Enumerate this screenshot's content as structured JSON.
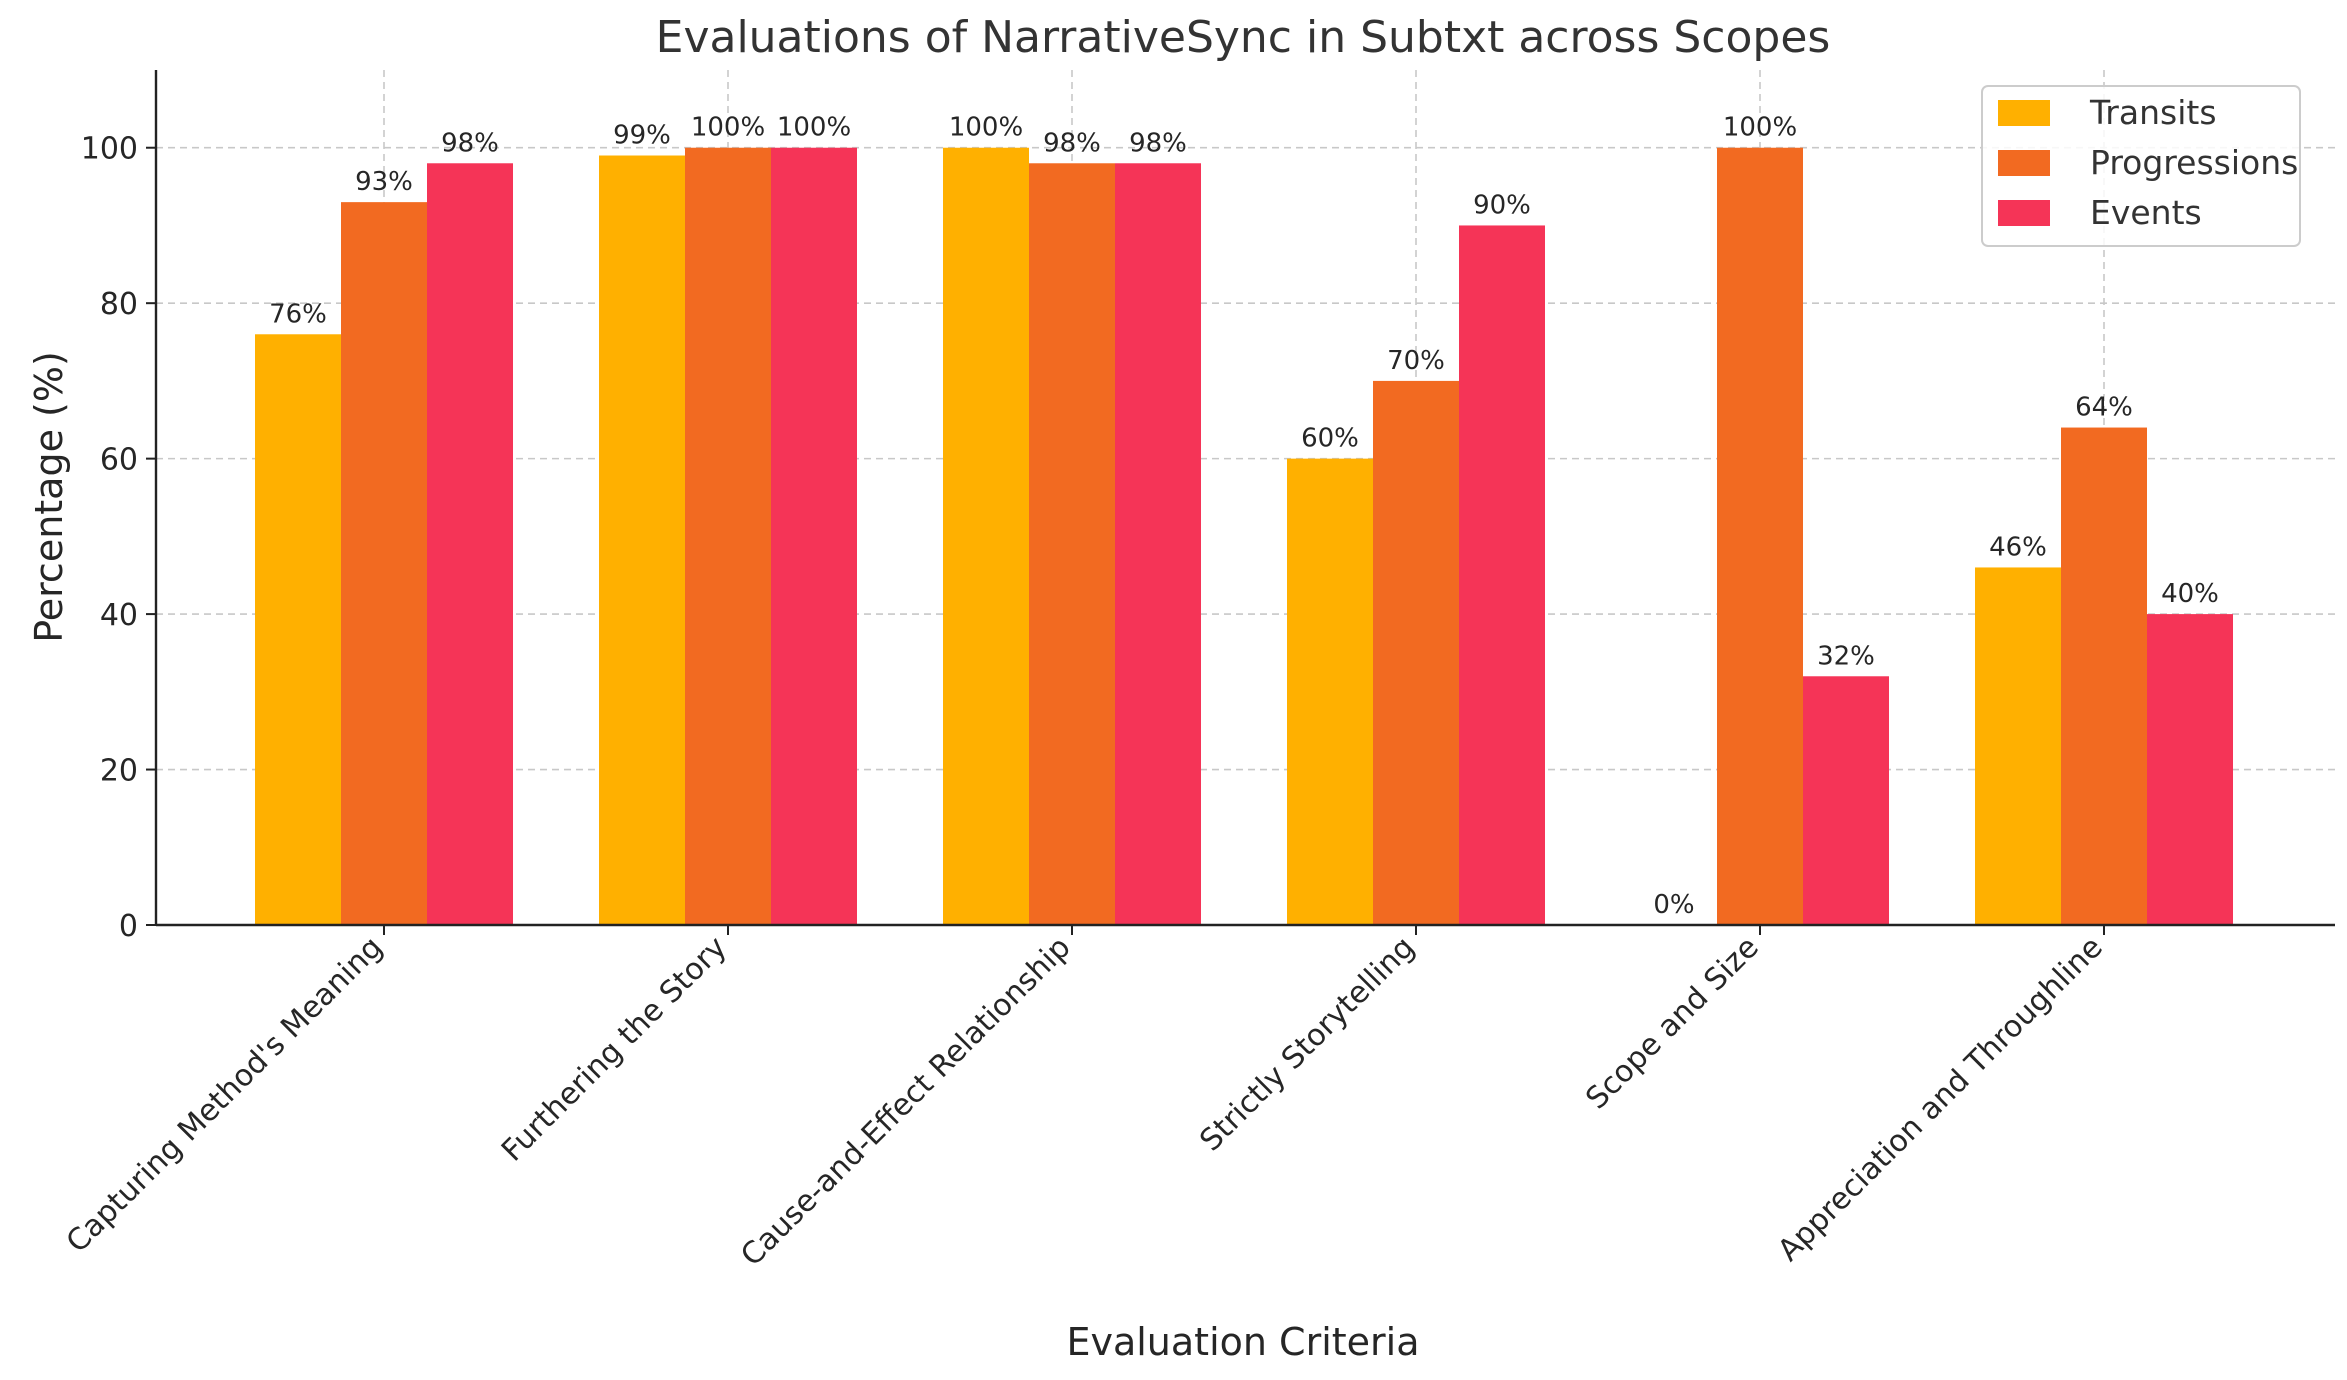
{
  "chart_data": {
    "type": "bar",
    "title": "Evaluations of NarrativeSync in Subtxt across Scopes",
    "xlabel": "Evaluation Criteria",
    "ylabel": "Percentage (%)",
    "ylim": [
      0,
      110
    ],
    "yticks": [
      0,
      20,
      40,
      60,
      80,
      100
    ],
    "grid": true,
    "legend_position": "top-right",
    "categories": [
      "Capturing Method's Meaning",
      "Furthering the Story",
      "Cause-and-Effect Relationship",
      "Strictly Storytelling",
      "Scope and Size",
      "Appreciation and Throughline"
    ],
    "series": [
      {
        "name": "Transits",
        "color": "#FFB000",
        "values": [
          76,
          99,
          100,
          60,
          0,
          46
        ]
      },
      {
        "name": "Progressions",
        "color": "#F26A21",
        "values": [
          93,
          100,
          98,
          70,
          100,
          64
        ]
      },
      {
        "name": "Events",
        "color": "#F53457",
        "values": [
          98,
          100,
          98,
          90,
          32,
          40
        ]
      }
    ],
    "value_suffix": "%"
  }
}
